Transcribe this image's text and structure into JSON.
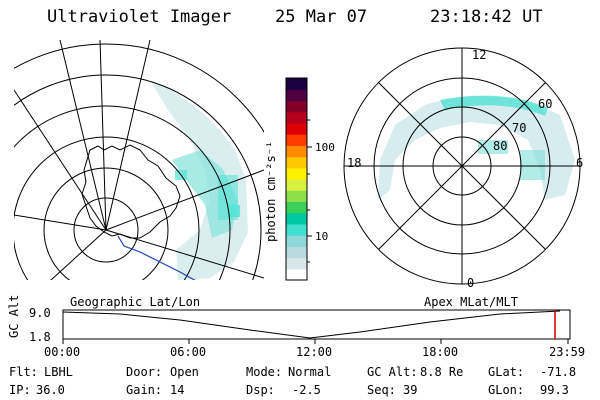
{
  "header": {
    "instrument": "Ultraviolet Imager",
    "date": "25 Mar 07",
    "time": "23:18:42 UT"
  },
  "colorbar": {
    "ticks": [
      "100",
      "10"
    ],
    "unit_label": "photon cm⁻²s⁻¹",
    "colors": [
      "#ffffff",
      "#d8e6ea",
      "#b9dbe0",
      "#8fd7d8",
      "#40e0d0",
      "#00c8a0",
      "#3bd05a",
      "#8ce04a",
      "#d8f040",
      "#fff000",
      "#ffc800",
      "#ff8c00",
      "#ff3c00",
      "#dc0000",
      "#b4001e",
      "#80002a",
      "#4c0040",
      "#1a0040"
    ]
  },
  "left_map": {
    "label": "Geographic Lat/Lon"
  },
  "right_map": {
    "label": "Apex MLat/MLT",
    "mlt_labels": [
      "12",
      "18",
      "6",
      "0"
    ],
    "lat_labels": [
      "60",
      "70",
      "80"
    ]
  },
  "timeline": {
    "axis_label": "GC Alt",
    "y_ticks": [
      "9.0",
      "1.8"
    ],
    "x_ticks": [
      "00:00",
      "06:00",
      "12:00",
      "18:00",
      "23:59"
    ],
    "marker_color": "#cc0000"
  },
  "footer": {
    "row1": [
      {
        "key": "Flt:",
        "value": "LBHL"
      },
      {
        "key": "Door:",
        "value": "Open"
      },
      {
        "key": "Mode:",
        "value": "Normal"
      },
      {
        "key": "GC Alt:",
        "value": "8.8 Re"
      },
      {
        "key": "GLat:",
        "value": "-71.8"
      }
    ],
    "row2": [
      {
        "key": "IP:",
        "value": "36.0"
      },
      {
        "key": "Gain:",
        "value": "14"
      },
      {
        "key": "Dsp:",
        "value": "-2.5"
      },
      {
        "key": "Seq:",
        "value": "39"
      },
      {
        "key": "GLon:",
        "value": "99.3"
      }
    ]
  }
}
